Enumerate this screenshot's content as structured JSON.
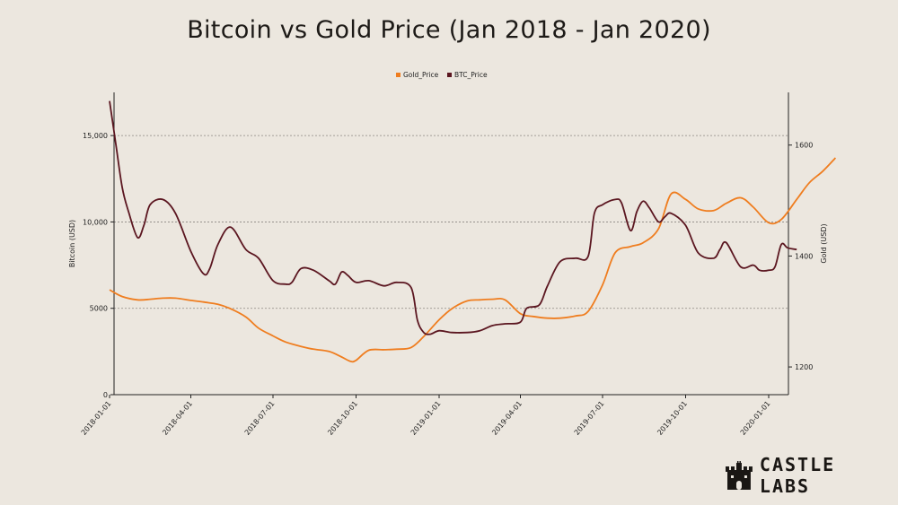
{
  "header": {
    "title": "Bitcoin vs Gold Price (Jan 2018 - Jan 2020)"
  },
  "logo": {
    "text": "CASTLE LABS"
  },
  "colors": {
    "gold": "#ef7d1f",
    "btc": "#5b1620",
    "grid": "#8a8580",
    "axis": "#222222",
    "text": "#222222"
  },
  "chart_data": {
    "type": "line",
    "title": "Bitcoin vs Gold Price (Jan 2018 - Jan 2020)",
    "legend": {
      "position": "top-center",
      "entries": [
        "Gold_Price",
        "BTC_Price"
      ]
    },
    "x_ticks": [
      "2018-01-01",
      "2018-04-01",
      "2018-07-01",
      "2018-10-01",
      "2019-01-01",
      "2019-04-01",
      "2019-07-01",
      "2019-10-01",
      "2020-01-01"
    ],
    "y_left": {
      "label": "Bitcoin (USD)",
      "ylim": [
        0,
        17500
      ],
      "ticks": [
        0,
        5000,
        10000,
        15000
      ],
      "tick_labels": [
        "0",
        "5000",
        "10,000",
        "15,000"
      ]
    },
    "y_right": {
      "label": "Gold (USD)",
      "ylim": [
        1150,
        1695
      ],
      "ticks": [
        1200,
        1400,
        1600
      ],
      "tick_labels": [
        "1200",
        "1400",
        "1600"
      ]
    },
    "grid": {
      "horizontal": true,
      "style": "dotted",
      "at_left_values": [
        5000,
        10000,
        15000
      ]
    },
    "series": [
      {
        "name": "Gold_Price",
        "axis": "right",
        "points": [
          [
            "2018-01-01",
            1339
          ],
          [
            "2018-01-15",
            1327
          ],
          [
            "2018-02-01",
            1321
          ],
          [
            "2018-02-15",
            1322
          ],
          [
            "2018-03-01",
            1324
          ],
          [
            "2018-03-15",
            1324
          ],
          [
            "2018-04-01",
            1320
          ],
          [
            "2018-04-15",
            1317
          ],
          [
            "2018-05-01",
            1313
          ],
          [
            "2018-05-15",
            1305
          ],
          [
            "2018-06-01",
            1290
          ],
          [
            "2018-06-15",
            1270
          ],
          [
            "2018-07-01",
            1256
          ],
          [
            "2018-07-15",
            1245
          ],
          [
            "2018-08-01",
            1237
          ],
          [
            "2018-08-15",
            1232
          ],
          [
            "2018-09-01",
            1228
          ],
          [
            "2018-09-15",
            1218
          ],
          [
            "2018-09-25",
            1210
          ],
          [
            "2018-10-01",
            1212
          ],
          [
            "2018-10-15",
            1230
          ],
          [
            "2018-11-01",
            1231
          ],
          [
            "2018-11-15",
            1232
          ],
          [
            "2018-12-01",
            1235
          ],
          [
            "2018-12-15",
            1255
          ],
          [
            "2019-01-01",
            1285
          ],
          [
            "2019-01-15",
            1305
          ],
          [
            "2019-02-01",
            1319
          ],
          [
            "2019-02-15",
            1321
          ],
          [
            "2019-03-01",
            1322
          ],
          [
            "2019-03-15",
            1321
          ],
          [
            "2019-04-01",
            1296
          ],
          [
            "2019-04-15",
            1291
          ],
          [
            "2019-05-01",
            1288
          ],
          [
            "2019-05-15",
            1288
          ],
          [
            "2019-06-01",
            1292
          ],
          [
            "2019-06-15",
            1300
          ],
          [
            "2019-07-01",
            1348
          ],
          [
            "2019-07-15",
            1406
          ],
          [
            "2019-08-01",
            1417
          ],
          [
            "2019-08-15",
            1424
          ],
          [
            "2019-09-01",
            1449
          ],
          [
            "2019-09-15",
            1512
          ],
          [
            "2019-10-01",
            1502
          ],
          [
            "2019-10-15",
            1485
          ],
          [
            "2019-11-01",
            1482
          ],
          [
            "2019-11-15",
            1495
          ],
          [
            "2019-12-01",
            1505
          ],
          [
            "2019-12-15",
            1488
          ],
          [
            "2020-01-01",
            1460
          ],
          [
            "2020-01-15",
            1466
          ],
          [
            "2020-02-01",
            1502
          ],
          [
            "2020-02-15",
            1532
          ],
          [
            "2020-03-01",
            1553
          ],
          [
            "2020-03-15",
            1577
          ]
        ]
      },
      {
        "name": "BTC_Price",
        "axis": "left",
        "points": [
          [
            "2018-01-01",
            17000
          ],
          [
            "2018-01-08",
            14500
          ],
          [
            "2018-01-15",
            12000
          ],
          [
            "2018-01-22",
            10600
          ],
          [
            "2018-02-01",
            9100
          ],
          [
            "2018-02-08",
            9800
          ],
          [
            "2018-02-15",
            11000
          ],
          [
            "2018-03-01",
            11300
          ],
          [
            "2018-03-15",
            10500
          ],
          [
            "2018-04-01",
            8300
          ],
          [
            "2018-04-15",
            7000
          ],
          [
            "2018-04-22",
            7300
          ],
          [
            "2018-05-01",
            8700
          ],
          [
            "2018-05-15",
            9700
          ],
          [
            "2018-06-01",
            8400
          ],
          [
            "2018-06-15",
            7900
          ],
          [
            "2018-07-01",
            6600
          ],
          [
            "2018-07-15",
            6400
          ],
          [
            "2018-07-22",
            6500
          ],
          [
            "2018-08-01",
            7300
          ],
          [
            "2018-08-15",
            7200
          ],
          [
            "2018-09-01",
            6600
          ],
          [
            "2018-09-08",
            6400
          ],
          [
            "2018-09-15",
            7100
          ],
          [
            "2018-09-22",
            6900
          ],
          [
            "2018-10-01",
            6500
          ],
          [
            "2018-10-15",
            6600
          ],
          [
            "2018-11-01",
            6300
          ],
          [
            "2018-11-15",
            6500
          ],
          [
            "2018-12-01",
            6200
          ],
          [
            "2018-12-08",
            4300
          ],
          [
            "2018-12-15",
            3600
          ],
          [
            "2018-12-22",
            3500
          ],
          [
            "2019-01-01",
            3700
          ],
          [
            "2019-01-15",
            3600
          ],
          [
            "2019-02-01",
            3600
          ],
          [
            "2019-02-15",
            3700
          ],
          [
            "2019-03-01",
            4000
          ],
          [
            "2019-03-15",
            4100
          ],
          [
            "2019-04-01",
            4200
          ],
          [
            "2019-04-08",
            5000
          ],
          [
            "2019-04-22",
            5200
          ],
          [
            "2019-05-01",
            6300
          ],
          [
            "2019-05-15",
            7700
          ],
          [
            "2019-06-01",
            7900
          ],
          [
            "2019-06-15",
            8000
          ],
          [
            "2019-06-22",
            10500
          ],
          [
            "2019-07-01",
            11000
          ],
          [
            "2019-07-15",
            11300
          ],
          [
            "2019-07-22",
            11100
          ],
          [
            "2019-08-01",
            9500
          ],
          [
            "2019-08-08",
            10600
          ],
          [
            "2019-08-15",
            11200
          ],
          [
            "2019-08-22",
            10800
          ],
          [
            "2019-09-01",
            10000
          ],
          [
            "2019-09-08",
            10300
          ],
          [
            "2019-09-15",
            10500
          ],
          [
            "2019-10-01",
            9800
          ],
          [
            "2019-10-15",
            8200
          ],
          [
            "2019-11-01",
            7900
          ],
          [
            "2019-11-08",
            8400
          ],
          [
            "2019-11-15",
            8800
          ],
          [
            "2019-12-01",
            7400
          ],
          [
            "2019-12-15",
            7500
          ],
          [
            "2019-12-22",
            7200
          ],
          [
            "2020-01-01",
            7200
          ],
          [
            "2020-01-08",
            7400
          ],
          [
            "2020-01-15",
            8700
          ],
          [
            "2020-01-22",
            8500
          ],
          [
            "2020-02-01",
            8400
          ]
        ]
      }
    ]
  }
}
